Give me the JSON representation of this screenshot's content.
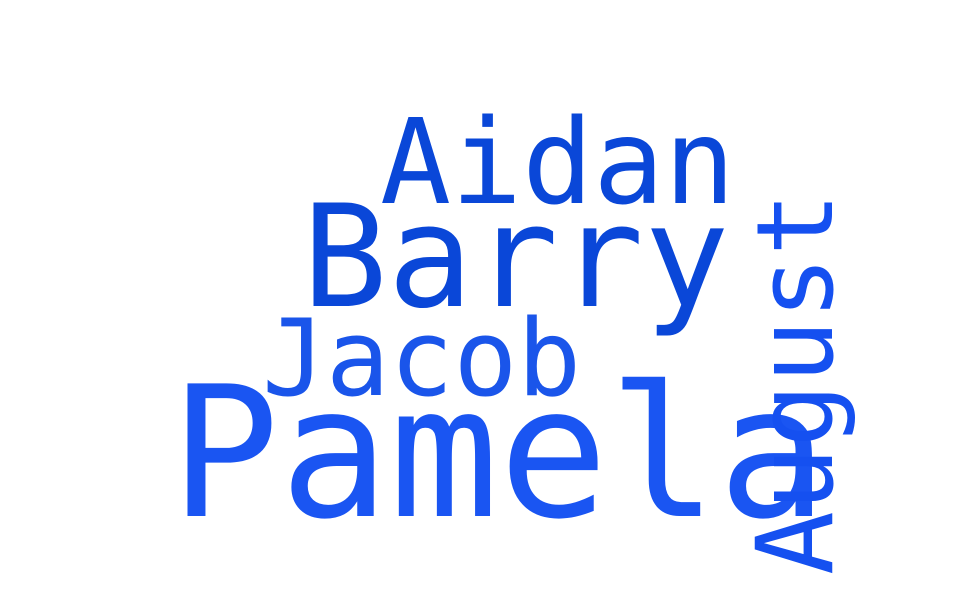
{
  "words": [
    {
      "text": "Aidan",
      "color": "#0a47d8",
      "orientation": "horizontal"
    },
    {
      "text": "Barry",
      "color": "#0a47d8",
      "orientation": "horizontal"
    },
    {
      "text": "Jacob",
      "color": "#1a55ea",
      "orientation": "horizontal"
    },
    {
      "text": "Pamela",
      "color": "#1a55f2",
      "orientation": "horizontal"
    },
    {
      "text": "August",
      "color": "#1550f0",
      "orientation": "vertical"
    }
  ],
  "background": "#ffffff"
}
